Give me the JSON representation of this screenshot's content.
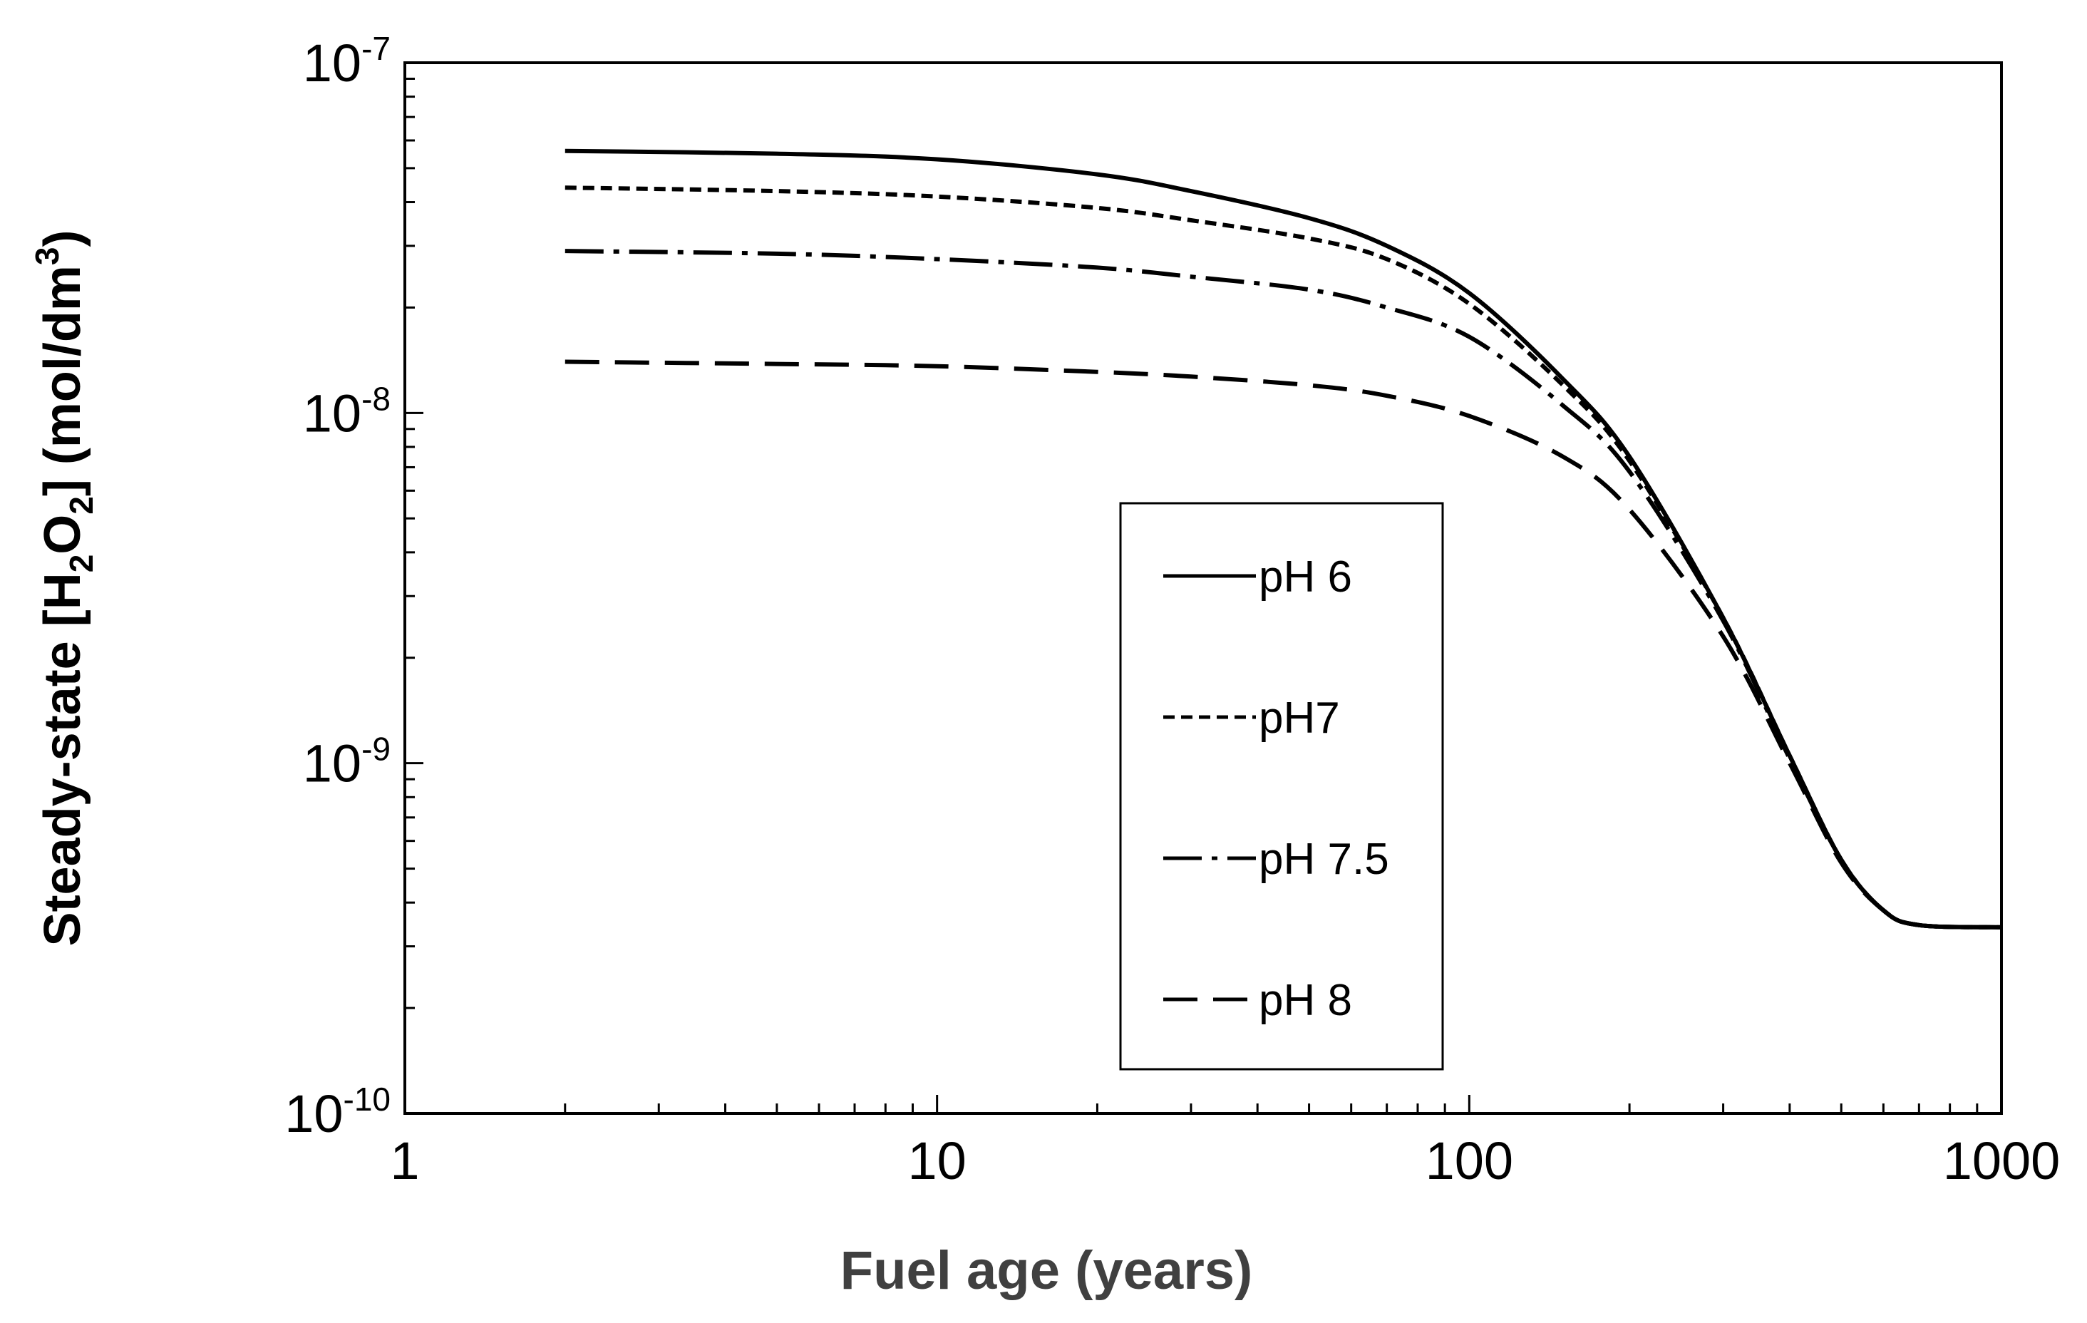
{
  "chart_data": {
    "type": "line",
    "title": "",
    "xlabel": "Fuel age (years)",
    "ylabel": {
      "prefix": "Steady-state [H",
      "sub1": "2",
      "mid": "O",
      "sub2": "2",
      "suffix": "] (mol/dm",
      "sup": "3",
      "end": ")"
    },
    "xscale": "log",
    "yscale": "log",
    "xlim": [
      1,
      1000
    ],
    "ylim": [
      1e-10,
      1e-07
    ],
    "x_ticks": [
      {
        "value": 1,
        "label": "1"
      },
      {
        "value": 10,
        "label": "10"
      },
      {
        "value": 100,
        "label": "100"
      },
      {
        "value": 1000,
        "label": "1000"
      }
    ],
    "y_ticks": [
      {
        "value": 1e-10,
        "base": "10",
        "exp": "-10"
      },
      {
        "value": 1e-09,
        "base": "10",
        "exp": "-9"
      },
      {
        "value": 1e-08,
        "base": "10",
        "exp": "-8"
      },
      {
        "value": 1e-07,
        "base": "10",
        "exp": "-7"
      }
    ],
    "grid": false,
    "legend_position": "center-right",
    "series": [
      {
        "name": "pH 6",
        "style": "solid",
        "x": [
          2,
          5,
          10,
          20,
          30,
          50,
          70,
          100,
          150,
          200,
          300,
          400,
          500,
          600,
          700,
          1000
        ],
        "y": [
          5.6e-08,
          5.5e-08,
          5.3e-08,
          4.8e-08,
          4.3e-08,
          3.6e-08,
          3e-08,
          2.2e-08,
          1.25e-08,
          7.5e-09,
          2.6e-09,
          1.05e-09,
          5.3e-10,
          3.8e-10,
          3.45e-10,
          3.4e-10
        ]
      },
      {
        "name": "pH7",
        "style": "dotted",
        "x": [
          2,
          5,
          10,
          20,
          30,
          50,
          70,
          100,
          150,
          200,
          300,
          400,
          500,
          600,
          700,
          1000
        ],
        "y": [
          4.4e-08,
          4.3e-08,
          4.15e-08,
          3.85e-08,
          3.55e-08,
          3.15e-08,
          2.75e-08,
          2.05e-08,
          1.2e-08,
          7.3e-09,
          2.6e-09,
          1.05e-09,
          5.3e-10,
          3.8e-10,
          3.45e-10,
          3.4e-10
        ]
      },
      {
        "name": "pH 7.5",
        "style": "dashdot",
        "x": [
          2,
          5,
          10,
          20,
          30,
          50,
          70,
          100,
          150,
          200,
          300,
          400,
          500,
          600,
          700,
          1000
        ],
        "y": [
          2.9e-08,
          2.85e-08,
          2.75e-08,
          2.6e-08,
          2.45e-08,
          2.25e-08,
          2e-08,
          1.65e-08,
          1.05e-08,
          6.8e-09,
          2.55e-09,
          1.03e-09,
          5.3e-10,
          3.8e-10,
          3.45e-10,
          3.4e-10
        ]
      },
      {
        "name": "pH 8",
        "style": "dashed",
        "x": [
          2,
          5,
          10,
          20,
          30,
          50,
          70,
          100,
          150,
          200,
          300,
          400,
          500,
          600,
          700,
          1000
        ],
        "y": [
          1.4e-08,
          1.38e-08,
          1.36e-08,
          1.31e-08,
          1.27e-08,
          1.2e-08,
          1.12e-08,
          9.8e-09,
          7.5e-09,
          5.3e-09,
          2.3e-09,
          1e-09,
          5.2e-10,
          3.8e-10,
          3.45e-10,
          3.4e-10
        ]
      }
    ]
  }
}
